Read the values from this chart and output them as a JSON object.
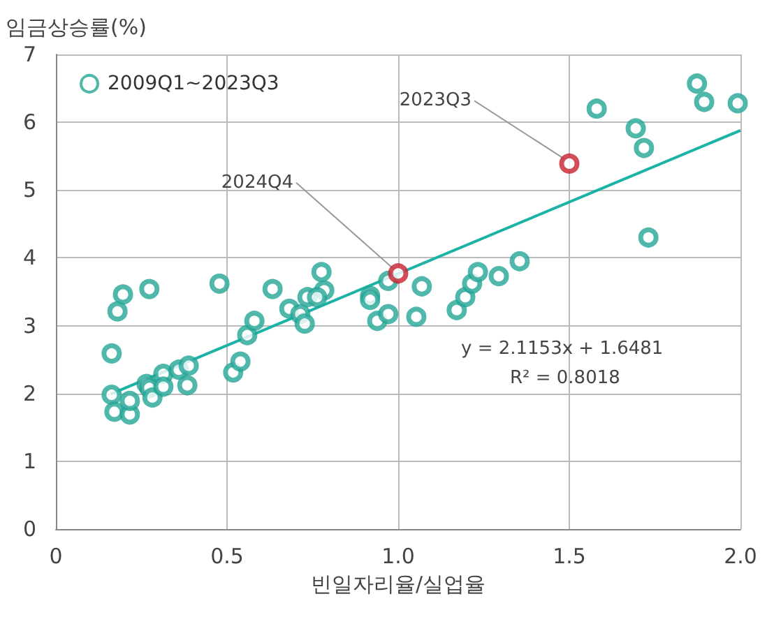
{
  "chart_data": {
    "type": "scatter",
    "xlabel": "빈일자리율/실업율",
    "ylabel": "임금상승률(%)",
    "xlim": [
      0,
      2
    ],
    "xticks": [
      0,
      0.5,
      {
        "value": 1,
        "label": "1.0"
      },
      1.5,
      {
        "value": 2,
        "label": "2.0"
      }
    ],
    "ylim": [
      0,
      7
    ],
    "yticks": [
      0,
      1,
      2,
      3,
      4,
      5,
      6,
      7
    ],
    "grid": true,
    "legend": "top left",
    "marker": "circle",
    "series": [
      {
        "name": "2009Q1~2023Q3",
        "color": "#24a596",
        "x": [
          0.163,
          0.171,
          0.216,
          0.216,
          0.253,
          0.265,
          0.273,
          0.282,
          0.314,
          0.314,
          0.359,
          0.388,
          0.384,
          0.163,
          0.18,
          0.196,
          0.273,
          0.478,
          0.518,
          0.539,
          0.559,
          0.58,
          0.633,
          0.682,
          0.714,
          0.735,
          0.727,
          0.776,
          0.784,
          0.763,
          0.918,
          0.918,
          0.939,
          0.971,
          0.971,
          1.069,
          1.053,
          1.171,
          1.196,
          1.216,
          1.233,
          1.294,
          1.355,
          1.58,
          1.694,
          1.718,
          1.873,
          1.894,
          1.992,
          1.731
        ],
        "values": [
          1.98,
          1.73,
          1.69,
          1.89,
          null,
          2.14,
          2.08,
          1.94,
          2.29,
          2.1,
          2.35,
          2.41,
          2.12,
          2.59,
          3.21,
          3.46,
          3.54,
          3.62,
          2.31,
          2.47,
          2.86,
          3.07,
          3.54,
          3.25,
          3.17,
          3.42,
          3.03,
          3.79,
          3.52,
          3.42,
          3.44,
          3.38,
          3.07,
          3.17,
          3.66,
          3.58,
          3.13,
          3.23,
          3.42,
          3.62,
          3.79,
          3.73,
          3.95,
          6.2,
          5.91,
          5.62,
          6.57,
          6.3,
          6.28,
          4.3
        ]
      },
      {
        "color": "#c8202e",
        "x": [
          1.0,
          1.5
        ],
        "values": [
          3.77,
          5.39
        ]
      },
      {
        "type": "line",
        "color": "#1ab3a6",
        "marker": "none",
        "x": [
          0.16,
          2.0
        ],
        "values": [
          1.99,
          5.88
        ]
      }
    ],
    "annotations": [
      {
        "text": "2023Q3",
        "x": 1.5,
        "y": 5.39
      },
      {
        "text": "2024Q4",
        "x": 1.0,
        "y": 3.77
      },
      "y = 2.1153x + 1.6481",
      "R² = 0.8018"
    ]
  }
}
